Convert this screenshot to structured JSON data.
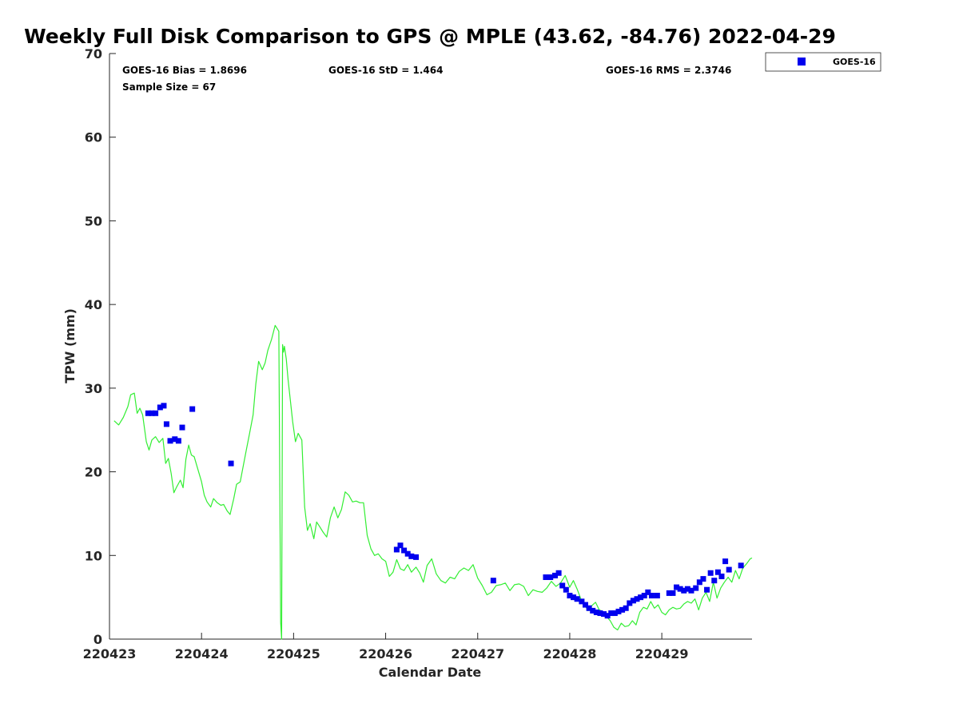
{
  "chart_data": {
    "type": "scatter",
    "title": "Weekly Full Disk Comparison to GPS @ MPLE (43.62, -84.76) 2022-04-29",
    "xlabel": "Calendar Date",
    "ylabel": "TPW (mm)",
    "xlim": [
      0,
      6.98
    ],
    "ylim": [
      0,
      70
    ],
    "x_ticks": [
      0,
      1,
      2,
      3,
      4,
      5,
      6
    ],
    "x_tick_labels": [
      "220423",
      "220424",
      "220425",
      "220426",
      "220427",
      "220428",
      "220429"
    ],
    "y_ticks": [
      0,
      10,
      20,
      30,
      40,
      50,
      60,
      70
    ],
    "y_tick_labels": [
      "0",
      "10",
      "20",
      "30",
      "40",
      "50",
      "60",
      "70"
    ],
    "stats": {
      "bias": "GOES-16 Bias = 1.8696",
      "std": "GOES-16 StD = 1.464",
      "rms": "GOES-16 RMS = 2.3746",
      "sample": "Sample Size = 67"
    },
    "legend": {
      "label": "GOES-16",
      "location": "top-right-outside"
    },
    "colors": {
      "goes": "#0000ee",
      "gps": "#33ee33",
      "axis": "#262626"
    },
    "series": [
      {
        "name": "GOES-16",
        "marker": "square",
        "x": [
          0.42,
          0.46,
          0.5,
          0.55,
          0.59,
          0.62,
          0.66,
          0.71,
          0.75,
          0.79,
          0.9,
          1.32,
          3.12,
          3.16,
          3.2,
          3.24,
          3.28,
          3.33,
          4.17,
          4.74,
          4.79,
          4.84,
          4.88,
          4.92,
          4.96,
          5.0,
          5.04,
          5.08,
          5.13,
          5.17,
          5.21,
          5.25,
          5.29,
          5.33,
          5.37,
          5.41,
          5.45,
          5.49,
          5.53,
          5.57,
          5.61,
          5.65,
          5.69,
          5.73,
          5.77,
          5.81,
          5.85,
          5.89,
          5.95,
          6.08,
          6.12,
          6.16,
          6.2,
          6.24,
          6.28,
          6.32,
          6.37,
          6.41,
          6.45,
          6.49,
          6.53,
          6.57,
          6.61,
          6.65,
          6.69,
          6.73,
          6.86
        ],
        "y": [
          27.0,
          27.0,
          27.0,
          27.7,
          27.9,
          25.7,
          23.7,
          23.9,
          23.7,
          25.3,
          27.5,
          21.0,
          10.7,
          11.2,
          10.6,
          10.2,
          9.9,
          9.8,
          7.0,
          7.4,
          7.4,
          7.6,
          7.9,
          6.4,
          5.9,
          5.2,
          5.0,
          4.8,
          4.5,
          4.1,
          3.7,
          3.4,
          3.2,
          3.1,
          3.0,
          2.8,
          3.1,
          3.1,
          3.3,
          3.5,
          3.7,
          4.3,
          4.6,
          4.8,
          5.0,
          5.2,
          5.6,
          5.2,
          5.2,
          5.5,
          5.5,
          6.2,
          6.0,
          5.8,
          6.0,
          5.8,
          6.1,
          6.8,
          7.2,
          5.9,
          7.9,
          7.0,
          8.0,
          7.5,
          9.3,
          8.3,
          8.8
        ]
      },
      {
        "name": "GPS",
        "line": true,
        "x": [
          0.05,
          0.1,
          0.15,
          0.2,
          0.23,
          0.27,
          0.3,
          0.33,
          0.36,
          0.4,
          0.43,
          0.46,
          0.5,
          0.54,
          0.58,
          0.61,
          0.64,
          0.67,
          0.7,
          0.73,
          0.77,
          0.8,
          0.83,
          0.86,
          0.89,
          0.92,
          0.96,
          1.0,
          1.03,
          1.06,
          1.1,
          1.13,
          1.17,
          1.21,
          1.24,
          1.28,
          1.31,
          1.35,
          1.38,
          1.42,
          1.45,
          1.49,
          1.52,
          1.56,
          1.59,
          1.62,
          1.66,
          1.69,
          1.72,
          1.76,
          1.8,
          1.84,
          1.86,
          1.87,
          1.88,
          1.89,
          1.9,
          1.92,
          1.94,
          1.96,
          1.99,
          2.02,
          2.05,
          2.09,
          2.12,
          2.15,
          2.18,
          2.22,
          2.25,
          2.28,
          2.32,
          2.36,
          2.4,
          2.44,
          2.48,
          2.52,
          2.56,
          2.6,
          2.64,
          2.68,
          2.72,
          2.76,
          2.8,
          2.84,
          2.88,
          2.92,
          2.96,
          3.0,
          3.04,
          3.08,
          3.12,
          3.16,
          3.2,
          3.24,
          3.28,
          3.33,
          3.37,
          3.41,
          3.45,
          3.5,
          3.55,
          3.6,
          3.65,
          3.7,
          3.75,
          3.8,
          3.85,
          3.9,
          3.95,
          4.0,
          4.05,
          4.1,
          4.15,
          4.2,
          4.25,
          4.3,
          4.35,
          4.4,
          4.45,
          4.5,
          4.55,
          4.6,
          4.65,
          4.7,
          4.75,
          4.8,
          4.85,
          4.9,
          4.95,
          5.0,
          5.04,
          5.08,
          5.12,
          5.16,
          5.2,
          5.24,
          5.28,
          5.32,
          5.36,
          5.4,
          5.44,
          5.48,
          5.52,
          5.56,
          5.6,
          5.64,
          5.68,
          5.72,
          5.76,
          5.8,
          5.84,
          5.88,
          5.92,
          5.96,
          6.0,
          6.04,
          6.08,
          6.12,
          6.16,
          6.2,
          6.24,
          6.28,
          6.32,
          6.36,
          6.4,
          6.44,
          6.48,
          6.52,
          6.56,
          6.6,
          6.64,
          6.68,
          6.72,
          6.76,
          6.8,
          6.84,
          6.88,
          6.92,
          6.96,
          6.98
        ],
        "y": [
          26.1,
          25.6,
          26.5,
          27.8,
          29.2,
          29.4,
          27.0,
          27.6,
          26.8,
          23.6,
          22.6,
          23.8,
          24.2,
          23.5,
          24.0,
          21.0,
          21.6,
          19.8,
          17.5,
          18.2,
          19.0,
          18.1,
          21.5,
          23.2,
          22.0,
          21.8,
          20.3,
          18.8,
          17.2,
          16.4,
          15.8,
          16.8,
          16.3,
          16.0,
          16.1,
          15.3,
          14.9,
          16.8,
          18.5,
          18.8,
          20.5,
          22.8,
          24.5,
          26.8,
          30.5,
          33.2,
          32.2,
          33.0,
          34.5,
          35.8,
          37.5,
          36.8,
          2.0,
          0.0,
          35.2,
          34.3,
          35.0,
          33.5,
          31.0,
          29.0,
          26.0,
          23.6,
          24.6,
          23.8,
          15.8,
          13.0,
          13.8,
          12.0,
          14.0,
          13.5,
          12.8,
          12.2,
          14.5,
          15.8,
          14.5,
          15.5,
          17.6,
          17.2,
          16.4,
          16.5,
          16.3,
          16.3,
          12.4,
          10.8,
          10.0,
          10.2,
          9.6,
          9.3,
          7.5,
          8.0,
          9.5,
          8.4,
          8.2,
          8.9,
          8.0,
          8.6,
          7.9,
          6.8,
          8.8,
          9.6,
          7.8,
          7.0,
          6.7,
          7.4,
          7.2,
          8.1,
          8.5,
          8.2,
          8.9,
          7.3,
          6.4,
          5.3,
          5.6,
          6.4,
          6.5,
          6.7,
          5.8,
          6.5,
          6.6,
          6.3,
          5.2,
          5.9,
          5.7,
          5.6,
          6.1,
          6.9,
          6.3,
          6.7,
          7.6,
          6.2,
          7.0,
          6.0,
          4.8,
          4.1,
          3.4,
          4.0,
          4.4,
          3.5,
          3.3,
          2.7,
          2.2,
          1.4,
          1.1,
          1.9,
          1.5,
          1.6,
          2.2,
          1.7,
          3.2,
          3.8,
          3.6,
          4.5,
          3.7,
          4.1,
          3.2,
          2.9,
          3.5,
          3.8,
          3.6,
          3.7,
          4.2,
          4.5,
          4.3,
          4.8,
          3.5,
          4.9,
          5.6,
          4.5,
          6.8,
          4.9,
          6.1,
          6.8,
          7.4,
          6.8,
          8.2,
          7.2,
          8.5,
          9.0,
          9.6,
          9.7
        ]
      }
    ]
  }
}
